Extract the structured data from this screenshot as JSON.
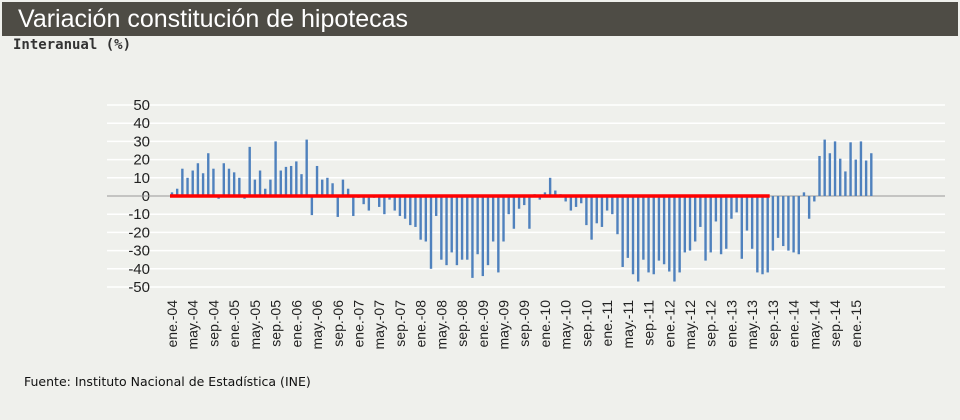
{
  "header": {
    "title": "Variación constitución de hipotecas"
  },
  "chart_data": {
    "type": "bar",
    "title": "Variación constitución de hipotecas",
    "ylabel": "Interanual (%)",
    "xlabel": "",
    "ylim": [
      -50,
      50
    ],
    "yticks": [
      50,
      40,
      30,
      20,
      10,
      0,
      -10,
      -20,
      -30,
      -40,
      -50
    ],
    "grid": true,
    "start_month": "ene.-04",
    "tick_labels": [
      "ene.-04",
      "may.-04",
      "sep.-04",
      "ene.-05",
      "may.-05",
      "sep.-05",
      "ene.-06",
      "may.-06",
      "sep.-06",
      "ene.-07",
      "may.-07",
      "sep.-07",
      "ene.-08",
      "may.-08",
      "sep.-08",
      "ene.-09",
      "may.-09",
      "sep.-09",
      "ene.-10",
      "may.-10",
      "sep.-10",
      "ene.-11",
      "may.-11",
      "sep.-11",
      "ene.-12",
      "may.-12",
      "sep.-12",
      "ene.-13",
      "may.-13",
      "sep.-13",
      "ene.-14",
      "may.-14",
      "sep.-14",
      "ene.-15"
    ],
    "values": [
      2,
      4,
      15,
      10,
      14,
      18,
      12.5,
      23.5,
      15,
      -1.5,
      18,
      15,
      13,
      10,
      -1.5,
      27,
      9,
      14,
      4,
      9,
      30,
      14,
      16,
      16.5,
      19,
      12,
      31,
      -10.5,
      16.5,
      9,
      10,
      7,
      -11.5,
      9,
      4,
      -11,
      -1,
      -4.5,
      -8,
      -1,
      -6,
      -10,
      -2,
      -8,
      -11,
      -12.5,
      -16,
      -17,
      -24,
      -25,
      -40,
      -11,
      -35,
      -38,
      -31,
      -38,
      -35,
      -35,
      -45,
      -32,
      -44,
      -38,
      -25,
      -42,
      -25,
      -10,
      -18,
      -7,
      -5,
      -18,
      1,
      -2,
      2,
      10,
      3,
      1,
      -3,
      -8,
      -6,
      -4,
      -16,
      -24,
      -15,
      -17,
      -8,
      -10,
      -21,
      -39,
      -34,
      -43,
      -47,
      -35,
      -42,
      -43,
      -35.5,
      -37.5,
      -41.5,
      -47,
      -42,
      -31,
      -30,
      -25,
      -17,
      -35.5,
      -31,
      -14,
      -32,
      -29,
      -12.5,
      -9,
      -34.5,
      -19,
      -29,
      -42,
      -43,
      -42,
      -30,
      -23,
      -27.5,
      -30,
      -31,
      -32,
      2,
      -12.5,
      -3,
      22,
      31,
      23.5,
      30,
      20.5,
      13.5,
      29.5,
      20,
      30,
      19.5,
      23.5
    ],
    "reference_line": {
      "value": 0,
      "from": "ene.-04",
      "to": "ago.-13",
      "color": "#ff0000"
    },
    "bar_color": "#4f81bd"
  },
  "footer": {
    "source": "Fuente: Instituto Nacional de Estadística (INE)"
  }
}
